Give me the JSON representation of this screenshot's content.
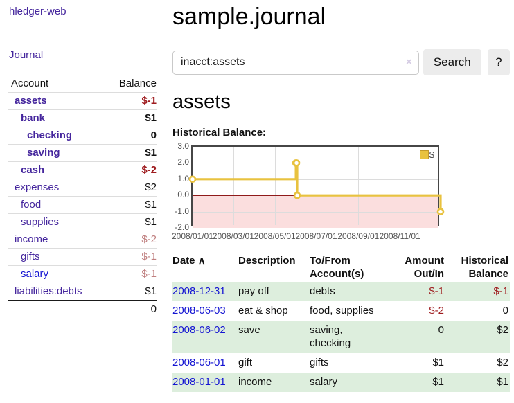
{
  "colors": {
    "link_purple": "#45269d",
    "link_blue": "#1414d2",
    "negative_red": "#9e1b1e",
    "negative_rose": "#c08080",
    "row_green": "#ddeedd",
    "chart_line": "#e8c23f",
    "chart_marker_fill": "#ffffff",
    "chart_negative_fill": "#fbdede",
    "chart_zero_line": "#8f1a1a"
  },
  "brand": "hledger-web",
  "sidebar": {
    "journal_link": "Journal",
    "accounts": {
      "col_account": "Account",
      "col_balance": "Balance",
      "rows": [
        {
          "account": "assets",
          "balance": "$-1"
        },
        {
          "account": "bank",
          "balance": "$1"
        },
        {
          "account": "checking",
          "balance": "0"
        },
        {
          "account": "saving",
          "balance": "$1"
        },
        {
          "account": "cash",
          "balance": "$-2"
        },
        {
          "account": "expenses",
          "balance": "$2"
        },
        {
          "account": "food",
          "balance": "$1"
        },
        {
          "account": "supplies",
          "balance": "$1"
        },
        {
          "account": "income",
          "balance": "$-2"
        },
        {
          "account": "gifts",
          "balance": "$-1"
        },
        {
          "account": "salary",
          "balance": "$-1"
        },
        {
          "account": "liabilities:debts",
          "balance": "$1"
        }
      ],
      "total": "0"
    }
  },
  "main": {
    "title": "sample.journal",
    "search": {
      "value": "inacct:assets",
      "clear_icon": "×",
      "search_button": "Search",
      "help_button": "?"
    },
    "account_heading": "assets",
    "chart_label": "Historical Balance:"
  },
  "chart_data": {
    "type": "line",
    "step": true,
    "title": "Historical Balance:",
    "legend": [
      {
        "label": "$"
      }
    ],
    "legend_position": "top-right",
    "grid": true,
    "x_range": [
      "2008-01-01",
      "2008-12-31"
    ],
    "ylim": [
      -2,
      3
    ],
    "yticks": [
      {
        "label": "3.0",
        "value": 3
      },
      {
        "label": "2.0",
        "value": 2
      },
      {
        "label": "1.0",
        "value": 1
      },
      {
        "label": "0.0",
        "value": 0
      },
      {
        "label": "-1.0",
        "value": -1
      },
      {
        "label": "-2.0",
        "value": -2
      }
    ],
    "xticks": [
      {
        "label": "2008/01/01",
        "date": "2008-01-01"
      },
      {
        "label": "2008/03/01",
        "date": "2008-03-01"
      },
      {
        "label": "2008/05/01",
        "date": "2008-05-01"
      },
      {
        "label": "2008/07/01",
        "date": "2008-07-01"
      },
      {
        "label": "2008/09/01",
        "date": "2008-09-01"
      },
      {
        "label": "2008/11/01",
        "date": "2008-11-01"
      }
    ],
    "series": [
      {
        "name": "$",
        "points": [
          [
            "2008-01-01",
            1
          ],
          [
            "2008-06-01",
            2
          ],
          [
            "2008-06-02",
            2
          ],
          [
            "2008-06-03",
            0
          ],
          [
            "2008-12-31",
            -1
          ]
        ]
      }
    ],
    "negative_region_shaded": true
  },
  "register": {
    "headers": {
      "date": "Date",
      "sort_ascending_icon": "∧",
      "description": "Description",
      "accounts_line1": "To/From",
      "accounts_line2": "Account(s)",
      "amount_line1": "Amount",
      "amount_line2": "Out/In",
      "balance_line1": "Historical",
      "balance_line2": "Balance"
    },
    "rows": [
      {
        "date": "2008-12-31",
        "description": "pay off",
        "accounts": "debts",
        "amount": "$-1",
        "balance": "$-1"
      },
      {
        "date": "2008-06-03",
        "description": "eat & shop",
        "accounts": "food, supplies",
        "amount": "$-2",
        "balance": "0"
      },
      {
        "date": "2008-06-02",
        "description": "save",
        "accounts": "saving, checking",
        "amount": "0",
        "balance": "$2"
      },
      {
        "date": "2008-06-01",
        "description": "gift",
        "accounts": "gifts",
        "amount": "$1",
        "balance": "$2"
      },
      {
        "date": "2008-01-01",
        "description": "income",
        "accounts": "salary",
        "amount": "$1",
        "balance": "$1"
      }
    ]
  }
}
